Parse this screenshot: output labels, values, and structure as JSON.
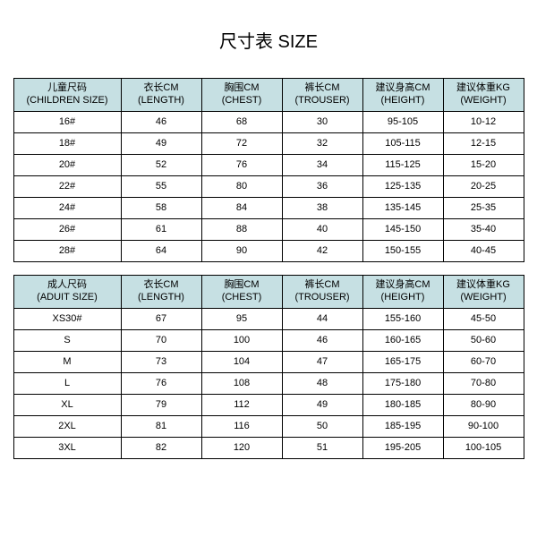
{
  "title": "尺寸表 SIZE",
  "colors": {
    "header_bg": "#c6e0e3",
    "border": "#000000",
    "text": "#000000",
    "background": "#ffffff"
  },
  "children_table": {
    "columns": [
      {
        "line1": "儿童尺码",
        "line2": "(CHILDREN SIZE)"
      },
      {
        "line1": "衣长CM",
        "line2": "(LENGTH)"
      },
      {
        "line1": "胸围CM",
        "line2": "(CHEST)"
      },
      {
        "line1": "裤长CM",
        "line2": "(TROUSER)"
      },
      {
        "line1": "建议身高CM",
        "line2": "(HEIGHT)"
      },
      {
        "line1": "建议体重KG",
        "line2": "(WEIGHT)"
      }
    ],
    "rows": [
      [
        "16#",
        "46",
        "68",
        "30",
        "95-105",
        "10-12"
      ],
      [
        "18#",
        "49",
        "72",
        "32",
        "105-115",
        "12-15"
      ],
      [
        "20#",
        "52",
        "76",
        "34",
        "115-125",
        "15-20"
      ],
      [
        "22#",
        "55",
        "80",
        "36",
        "125-135",
        "20-25"
      ],
      [
        "24#",
        "58",
        "84",
        "38",
        "135-145",
        "25-35"
      ],
      [
        "26#",
        "61",
        "88",
        "40",
        "145-150",
        "35-40"
      ],
      [
        "28#",
        "64",
        "90",
        "42",
        "150-155",
        "40-45"
      ]
    ]
  },
  "adult_table": {
    "columns": [
      {
        "line1": "成人尺码",
        "line2": "(ADUIT SIZE)"
      },
      {
        "line1": "衣长CM",
        "line2": "(LENGTH)"
      },
      {
        "line1": "胸围CM",
        "line2": "(CHEST)"
      },
      {
        "line1": "裤长CM",
        "line2": "(TROUSER)"
      },
      {
        "line1": "建议身高CM",
        "line2": "(HEIGHT)"
      },
      {
        "line1": "建议体重KG",
        "line2": "(WEIGHT)"
      }
    ],
    "rows": [
      [
        "XS30#",
        "67",
        "95",
        "44",
        "155-160",
        "45-50"
      ],
      [
        "S",
        "70",
        "100",
        "46",
        "160-165",
        "50-60"
      ],
      [
        "M",
        "73",
        "104",
        "47",
        "165-175",
        "60-70"
      ],
      [
        "L",
        "76",
        "108",
        "48",
        "175-180",
        "70-80"
      ],
      [
        "XL",
        "79",
        "112",
        "49",
        "180-185",
        "80-90"
      ],
      [
        "2XL",
        "81",
        "116",
        "50",
        "185-195",
        "90-100"
      ],
      [
        "3XL",
        "82",
        "120",
        "51",
        "195-205",
        "100-105"
      ]
    ]
  }
}
